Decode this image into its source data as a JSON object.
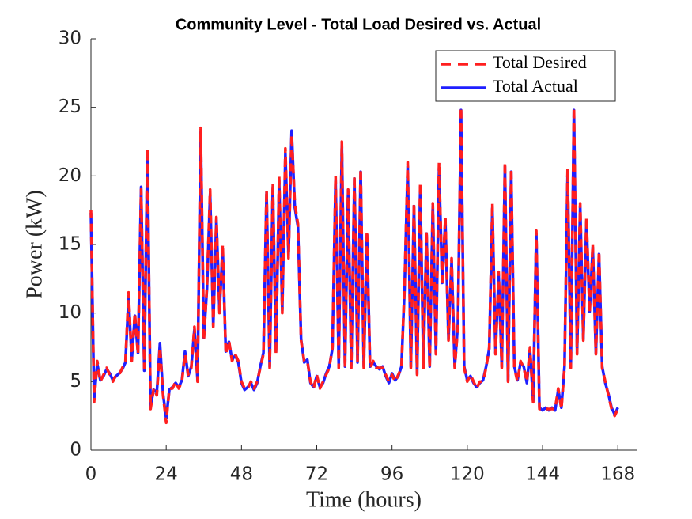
{
  "chart_data": {
    "type": "line",
    "title": "Community Level - Total Load Desired vs. Actual",
    "xlabel": "Time (hours)",
    "ylabel": "Power (kW)",
    "x": [
      0,
      1,
      2,
      3,
      4,
      5,
      6,
      7,
      8,
      9,
      10,
      11,
      12,
      13,
      14,
      15,
      16,
      17,
      18,
      19,
      20,
      21,
      22,
      23,
      24,
      25,
      26,
      27,
      28,
      29,
      30,
      31,
      32,
      33,
      34,
      35,
      36,
      37,
      38,
      39,
      40,
      41,
      42,
      43,
      44,
      45,
      46,
      47,
      48,
      49,
      50,
      51,
      52,
      53,
      54,
      55,
      56,
      57,
      58,
      59,
      60,
      61,
      62,
      63,
      64,
      65,
      66,
      67,
      68,
      69,
      70,
      71,
      72,
      73,
      74,
      75,
      76,
      77,
      78,
      79,
      80,
      81,
      82,
      83,
      84,
      85,
      86,
      87,
      88,
      89,
      90,
      91,
      92,
      93,
      94,
      95,
      96,
      97,
      98,
      99,
      100,
      101,
      102,
      103,
      104,
      105,
      106,
      107,
      108,
      109,
      110,
      111,
      112,
      113,
      114,
      115,
      116,
      117,
      118,
      119,
      120,
      121,
      122,
      123,
      124,
      125,
      126,
      127,
      128,
      129,
      130,
      131,
      132,
      133,
      134,
      135,
      136,
      137,
      138,
      139,
      140,
      141,
      142,
      143,
      144,
      145,
      146,
      147,
      148,
      149,
      150,
      151,
      152,
      153,
      154,
      155,
      156,
      157,
      158,
      159,
      160,
      161,
      162,
      163,
      164,
      165,
      166,
      167,
      168
    ],
    "series": [
      {
        "name": "Total Desired",
        "color": "#ff1f1f",
        "dash": true,
        "values": [
          17.5,
          3.5,
          6.5,
          5,
          5.5,
          6,
          5.5,
          5,
          5.5,
          5.5,
          6,
          6.5,
          11.5,
          6.5,
          10,
          7,
          19,
          6,
          22,
          3,
          4.5,
          4,
          7.5,
          4,
          2,
          4.5,
          4.5,
          5,
          4.5,
          5,
          7,
          5.5,
          6,
          9,
          5,
          23.5,
          8,
          12,
          19,
          9,
          17,
          10,
          15,
          7,
          8,
          6.5,
          7,
          6.5,
          5,
          4.5,
          4.5,
          5,
          4.5,
          5,
          6,
          7,
          19,
          6,
          19.5,
          7,
          20,
          10,
          22,
          14,
          23,
          18,
          16.5,
          8,
          6.5,
          6.5,
          5,
          4.5,
          5.5,
          4.5,
          5,
          5.5,
          6,
          7.5,
          20,
          6,
          22.5,
          6,
          19,
          6,
          20,
          6.5,
          20.5,
          6,
          16,
          6,
          6.5,
          6,
          6,
          6,
          5.5,
          5,
          5.5,
          5,
          5.5,
          6,
          12,
          21,
          6,
          18,
          5.5,
          19.5,
          6,
          16,
          6,
          18,
          7,
          21,
          12,
          17,
          8,
          14,
          6,
          9,
          25,
          6,
          5,
          5.5,
          5,
          4.5,
          5,
          5,
          6,
          7.5,
          18,
          7,
          13,
          6,
          21,
          5,
          20.5,
          6,
          5,
          6.5,
          6,
          5,
          7.5,
          3.5,
          16,
          3,
          3,
          3,
          3,
          3,
          3,
          4.5,
          3,
          6,
          20.5,
          6,
          25,
          7,
          18,
          8,
          17,
          10,
          15,
          7,
          14.5,
          6,
          5,
          4,
          3,
          2.5,
          3
        ]
      },
      {
        "name": "Total Actual",
        "color": "#1f1fff",
        "dash": false,
        "values": [
          17.3,
          3.7,
          6.3,
          5.1,
          5.4,
          5.9,
          5.6,
          5.1,
          5.4,
          5.6,
          5.9,
          6.4,
          11.2,
          6.6,
          9.8,
          7.1,
          19.2,
          5.8,
          21.8,
          3.2,
          4.4,
          4.2,
          7.8,
          4.1,
          2.3,
          4.4,
          4.6,
          4.9,
          4.6,
          5.1,
          7.2,
          5.4,
          6.1,
          8.8,
          5.1,
          23.2,
          8.2,
          11.8,
          18.7,
          9.1,
          16.8,
          10.2,
          14.7,
          7.2,
          7.9,
          6.6,
          6.9,
          6.4,
          4.9,
          4.4,
          4.6,
          4.9,
          4.4,
          4.9,
          6.1,
          7.1,
          18.8,
          6.1,
          19.2,
          7.2,
          19.7,
          10.2,
          21.6,
          14.2,
          23.3,
          17.7,
          16.3,
          8.1,
          6.4,
          6.6,
          4.9,
          4.6,
          5.4,
          4.6,
          4.9,
          5.6,
          6.1,
          7.4,
          19.7,
          6.2,
          22.3,
          6.1,
          18.8,
          6.2,
          19.8,
          6.4,
          20.3,
          6.1,
          15.7,
          6.1,
          6.4,
          6.1,
          5.9,
          6.1,
          5.4,
          4.9,
          5.6,
          5.1,
          5.4,
          6.1,
          11.8,
          20.7,
          6.1,
          17.8,
          5.6,
          19.2,
          6.2,
          15.8,
          6.1,
          17.8,
          7.1,
          20.6,
          12.2,
          16.8,
          8.1,
          13.8,
          6.1,
          9.2,
          24.8,
          6.1,
          5.1,
          5.4,
          4.9,
          4.6,
          4.9,
          5.1,
          6.1,
          7.4,
          17.7,
          7.1,
          12.8,
          6.1,
          20.7,
          5.1,
          20.3,
          6.1,
          5.1,
          6.4,
          6.1,
          4.9,
          7.3,
          3.6,
          15.8,
          3.1,
          2.9,
          3.1,
          2.9,
          3.1,
          2.9,
          4.4,
          3.1,
          6.1,
          20.2,
          6.1,
          24.8,
          7.1,
          17.8,
          8.1,
          16.7,
          10.1,
          14.8,
          7.1,
          14.3,
          6.1,
          4.9,
          4.1,
          3.1,
          2.6,
          3.1
        ]
      }
    ],
    "xlim": [
      0,
      174
    ],
    "ylim": [
      0,
      30
    ],
    "xticks": [
      0,
      24,
      48,
      72,
      96,
      120,
      144,
      168
    ],
    "yticks": [
      0,
      5,
      10,
      15,
      20,
      25,
      30
    ],
    "legend": "northeast",
    "grid": false
  }
}
